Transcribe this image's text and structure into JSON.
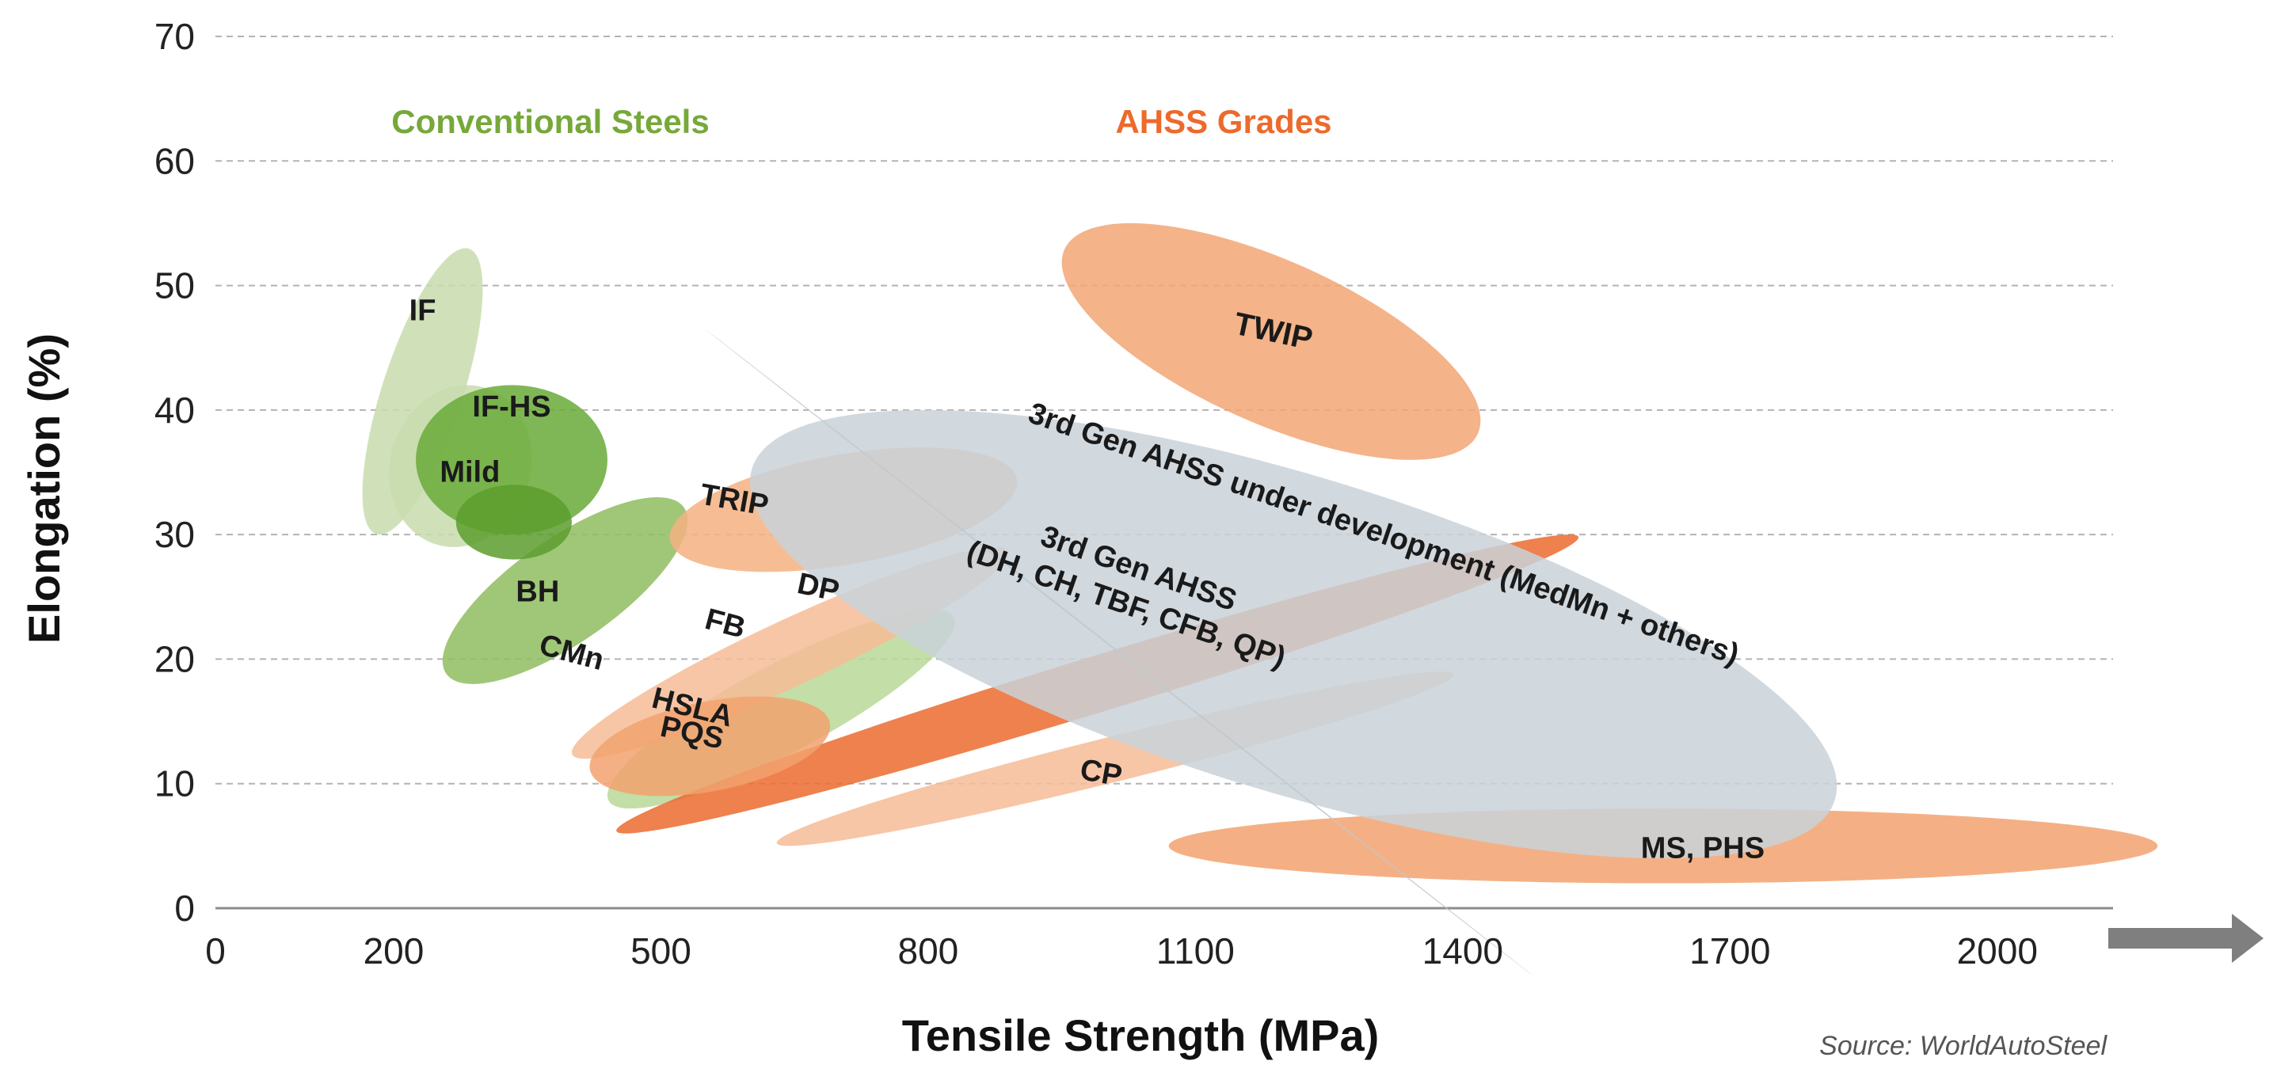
{
  "chart_data": {
    "type": "scatter",
    "subtype": "banana-region-bubble",
    "xlabel": "Tensile Strength (MPa)",
    "ylabel": "Elongation (%)",
    "x_ticks": [
      0,
      200,
      500,
      800,
      1100,
      1400,
      1700,
      2000
    ],
    "y_ticks": [
      0,
      10,
      20,
      30,
      40,
      50,
      60,
      70
    ],
    "x_tick_labels": [
      "0",
      "200",
      "500",
      "800",
      "1100",
      "1400",
      "1700",
      "2000"
    ],
    "y_tick_labels": [
      "0",
      "10",
      "20",
      "30",
      "40",
      "50",
      "60",
      "70"
    ],
    "xlim": [
      0,
      2130
    ],
    "ylim": [
      0,
      70
    ],
    "grid": "horizontal dashed",
    "source": "Source: WorldAutoSteel",
    "groups": [
      {
        "label": "Conventional Steels",
        "color": "#76a83a"
      },
      {
        "label": "AHSS Grades",
        "color": "#ec6a2c"
      }
    ],
    "regions": [
      {
        "label": "IF",
        "x_range": [
          165,
          300
        ],
        "y_range": [
          30,
          53
        ],
        "color": "#c8dcae",
        "angle_deg": -72
      },
      {
        "label": "Mild",
        "x_range": [
          195,
          355
        ],
        "y_range": [
          29,
          42
        ],
        "color": "#c8dcae",
        "angle_deg": -72
      },
      {
        "label": "CMn",
        "x_range": [
          255,
          530
        ],
        "y_range": [
          18,
          33
        ],
        "color": "#8fbd5f",
        "angle_deg": -35
      },
      {
        "label": "HSLA",
        "x_range": [
          440,
          830
        ],
        "y_range": [
          8,
          24
        ],
        "color": "#b9d898",
        "angle_deg": -28
      },
      {
        "label": "IF-HS",
        "x_range": [
          225,
          440
        ],
        "y_range": [
          30,
          42
        ],
        "color": "#6aaa38",
        "angle_deg": 0
      },
      {
        "label": "BH",
        "x_range": [
          270,
          400
        ],
        "y_range": [
          28,
          34
        ],
        "color": "#5c9e2e",
        "angle_deg": 0
      },
      {
        "label": "TWIP",
        "x_range": [
          950,
          1420
        ],
        "y_range": [
          36,
          55
        ],
        "color": "#f2a674",
        "angle_deg": 24
      },
      {
        "label": "TRIP",
        "x_range": [
          510,
          900
        ],
        "y_range": [
          27,
          37
        ],
        "color": "#f4b183",
        "angle_deg": -10
      },
      {
        "label": "DP",
        "x_range": [
          450,
          1530
        ],
        "y_range": [
          6,
          30
        ],
        "color": "#eb6b2e",
        "angle_deg": -17
      },
      {
        "label": "FB",
        "x_range": [
          400,
          890
        ],
        "y_range": [
          12,
          29
        ],
        "color": "#f6bc97",
        "angle_deg": -25
      },
      {
        "label": "PQS",
        "x_range": [
          420,
          690
        ],
        "y_range": [
          9,
          17
        ],
        "color": "#f2a26e",
        "angle_deg": -11
      },
      {
        "label": "CP",
        "x_range": [
          630,
          1390
        ],
        "y_range": [
          5,
          19
        ],
        "color": "#f6bc97",
        "angle_deg": -14
      },
      {
        "label": "MS, PHS",
        "x_range": [
          1070,
          2180
        ],
        "y_range": [
          2,
          8
        ],
        "color": "#f2a26e",
        "angle_deg": 0
      },
      {
        "label": "3rd Gen AHSS under development (MedMn + others)",
        "x_range": [
          600,
          1820
        ],
        "y_range": [
          4,
          40
        ],
        "color": "#c9d2d9",
        "angle_deg": 17
      },
      {
        "label": "3rd Gen AHSS (DH, CH, TBF, CFB, QP)",
        "x_range": [
          610,
          1420
        ],
        "y_range": [
          5,
          36
        ],
        "color": "#c0c8ce",
        "angle_deg": 38
      }
    ]
  },
  "text": {
    "conventional": "Conventional Steels",
    "ahss": "AHSS Grades",
    "xlabel": "Tensile Strength (MPa)",
    "ylabel": "Elongation (%)",
    "source": "Source: WorldAutoSteel"
  }
}
